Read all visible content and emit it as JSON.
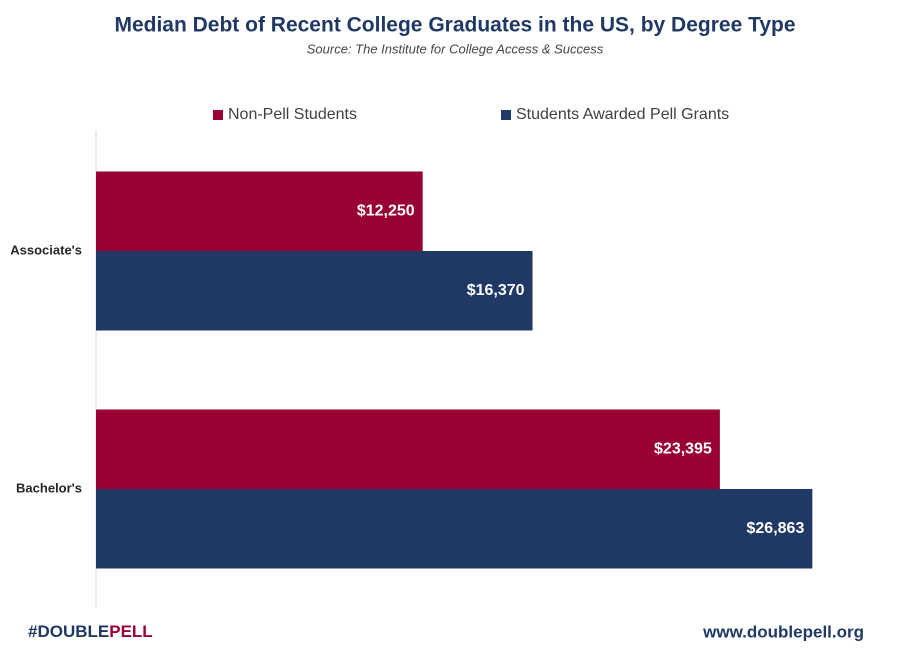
{
  "chart_data": {
    "type": "bar",
    "orientation": "horizontal",
    "title": "Median Debt of Recent College Graduates in the US, by Degree Type",
    "subtitle": "Source: The Institute for College Access & Success",
    "categories": [
      "Associate's",
      "Bachelor's"
    ],
    "series": [
      {
        "name": "Non-Pell Students",
        "color": "#990033",
        "values": [
          12250,
          23395
        ],
        "value_labels": [
          "$12,250",
          "$23,395"
        ]
      },
      {
        "name": "Students Awarded Pell Grants",
        "color": "#203864",
        "values": [
          16370,
          26863
        ],
        "value_labels": [
          "$16,370",
          "$26,863"
        ]
      }
    ],
    "xlim": [
      0,
      30000
    ]
  },
  "footer": {
    "hashtag": [
      "#DOUBLE",
      "PELL"
    ],
    "url": "www.doublepell.org"
  }
}
